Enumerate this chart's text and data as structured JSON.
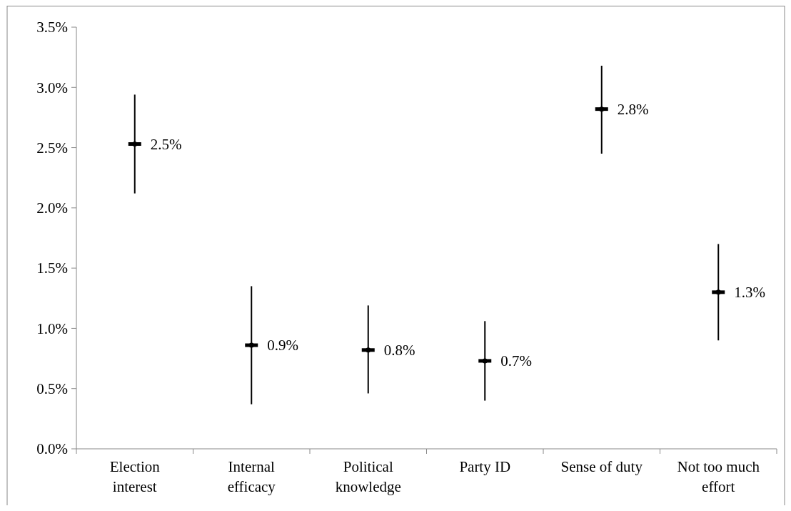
{
  "chart_data": {
    "type": "scatter",
    "categories": [
      "Election interest",
      "Internal efficacy",
      "Political knowledge",
      "Party ID",
      "Sense of duty",
      "Not too much effort"
    ],
    "values": [
      2.53,
      0.86,
      0.82,
      0.73,
      2.82,
      1.3
    ],
    "errors": [
      [
        2.12,
        2.94
      ],
      [
        0.37,
        1.35
      ],
      [
        0.46,
        1.19
      ],
      [
        0.4,
        1.06
      ],
      [
        2.45,
        3.18
      ],
      [
        0.9,
        1.7
      ]
    ],
    "value_labels": [
      "2.5%",
      "0.9%",
      "0.8%",
      "0.7%",
      "2.8%",
      "1.3%"
    ],
    "color": "#000000",
    "ylim": [
      0,
      3.5
    ],
    "yticks": [
      {
        "value": 0,
        "label": "0.0%"
      },
      {
        "value": 0.5,
        "label": "0.5%"
      },
      {
        "value": 1,
        "label": "1.0%"
      },
      {
        "value": 1.5,
        "label": "1.5%"
      },
      {
        "value": 2,
        "label": "2.0%"
      },
      {
        "value": 2.5,
        "label": "2.5%"
      },
      {
        "value": 3,
        "label": "3.0%"
      },
      {
        "value": 3.5,
        "label": "3.5%"
      }
    ],
    "grid": false
  }
}
